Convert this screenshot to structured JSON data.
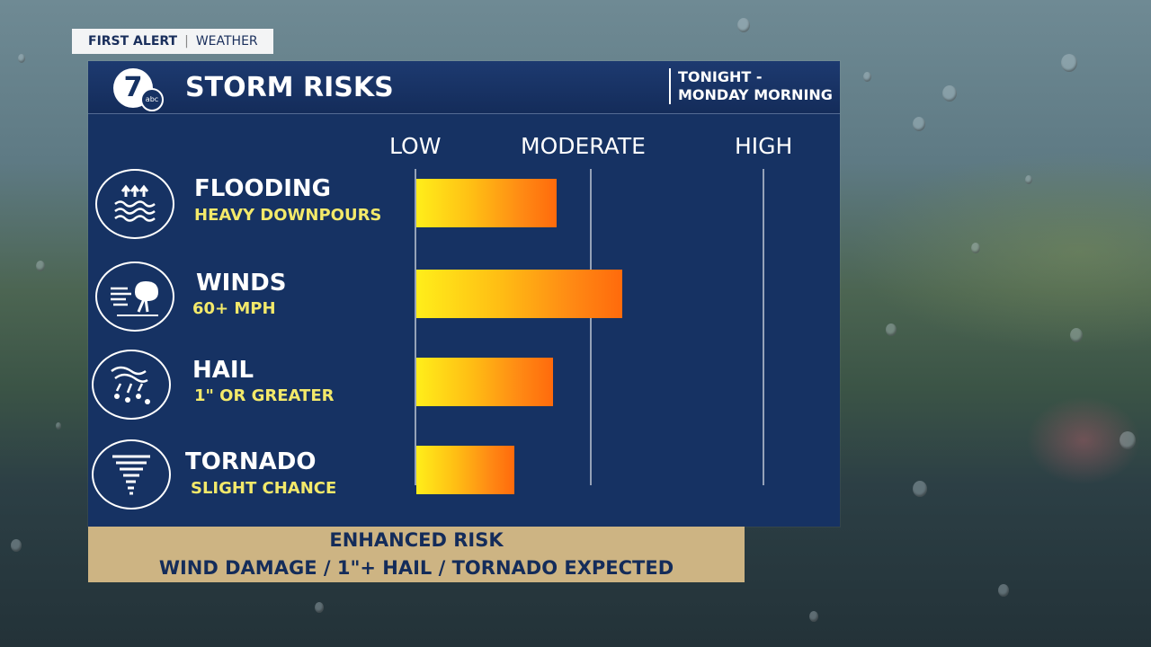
{
  "brand": {
    "first_alert": "FIRST ALERT",
    "weather": "WEATHER",
    "logo_number": "7",
    "logo_network": "abc"
  },
  "header": {
    "title": "STORM RISKS",
    "period_line1": "TONIGHT -",
    "period_line2": "MONDAY MORNING"
  },
  "chart_data": {
    "type": "bar",
    "orientation": "horizontal",
    "scale_labels": [
      "LOW",
      "MODERATE",
      "HIGH"
    ],
    "scale_range": [
      0,
      2
    ],
    "categories": [
      "FLOODING",
      "WINDS",
      "HAIL",
      "TORNADO"
    ],
    "subtitles": [
      "HEAVY DOWNPOURS",
      "60+ MPH",
      "1\" OR GREATER",
      "SLIGHT CHANCE"
    ],
    "values": [
      0.81,
      1.19,
      0.79,
      0.57
    ],
    "icons": [
      "rising-water-icon",
      "wind-tree-icon",
      "hail-icon",
      "tornado-icon"
    ]
  },
  "footer": {
    "line1": "ENHANCED RISK",
    "line2": "WIND DAMAGE /  1\"+ HAIL / TORNADO EXPECTED"
  },
  "colors": {
    "panel": "#163263",
    "bar_start": "#ffee1a",
    "bar_end": "#ff6a0c",
    "subtitle": "#f3e96a",
    "footer_bg": "#cdb483"
  }
}
